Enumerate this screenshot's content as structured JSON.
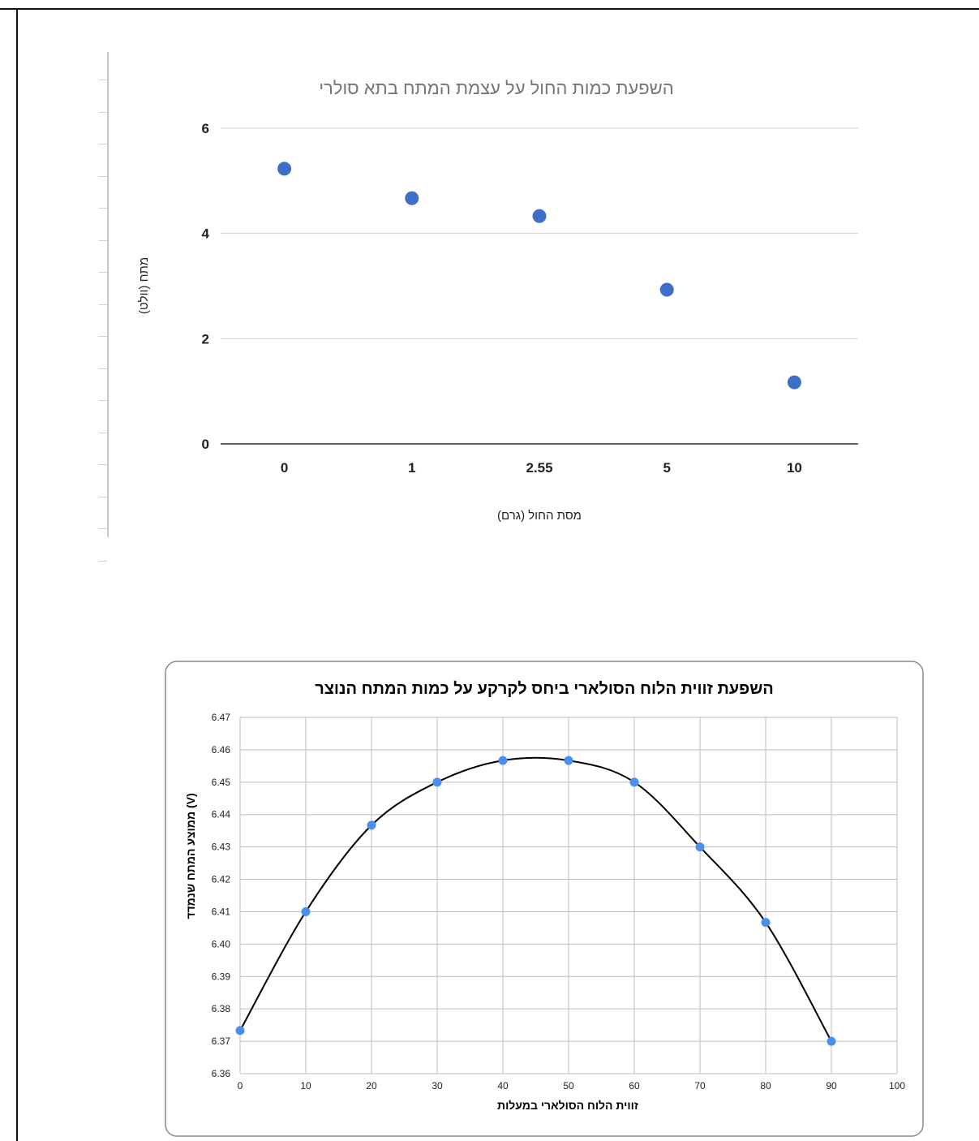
{
  "chart_data": [
    {
      "type": "scatter",
      "title": "השפעת כמות החול על עצמת המתח בתא סולרי",
      "xlabel": "מסת החול (גרם)",
      "ylabel": "מתח (וולט)",
      "categories": [
        "0",
        "1",
        "2.55",
        "5",
        "10"
      ],
      "values": [
        5.23,
        4.67,
        4.33,
        2.93,
        1.17
      ],
      "ylim": [
        0,
        6
      ],
      "yticks": [
        "0",
        "2",
        "4",
        "6"
      ],
      "grid": "horizontal",
      "marker_color": "#3d6fc8"
    },
    {
      "type": "scatter",
      "title": "השפעת זווית הלוח הסולארי ביחס לקרקע על כמות המתח הנוצר",
      "xlabel": "זווית הלוח הסולארי במעלות",
      "ylabel": "ממוצע המתח שנמדד (V)",
      "x": [
        0,
        10,
        20,
        30,
        40,
        50,
        60,
        70,
        80,
        90
      ],
      "y": [
        6.3733,
        6.41,
        6.4367,
        6.45,
        6.4567,
        6.4567,
        6.45,
        6.43,
        6.4067,
        6.37
      ],
      "xlim": [
        0,
        100
      ],
      "ylim": [
        6.36,
        6.47
      ],
      "xticks": [
        "0",
        "10",
        "20",
        "30",
        "40",
        "50",
        "60",
        "70",
        "80",
        "90",
        "100"
      ],
      "yticks": [
        "6.36",
        "6.37",
        "6.38",
        "6.39",
        "6.40",
        "6.41",
        "6.42",
        "6.43",
        "6.44",
        "6.45",
        "6.46",
        "6.47"
      ],
      "grid": "both",
      "trendline": "smooth",
      "marker_color": "#4a8ff0",
      "line_color": "#000000"
    }
  ]
}
